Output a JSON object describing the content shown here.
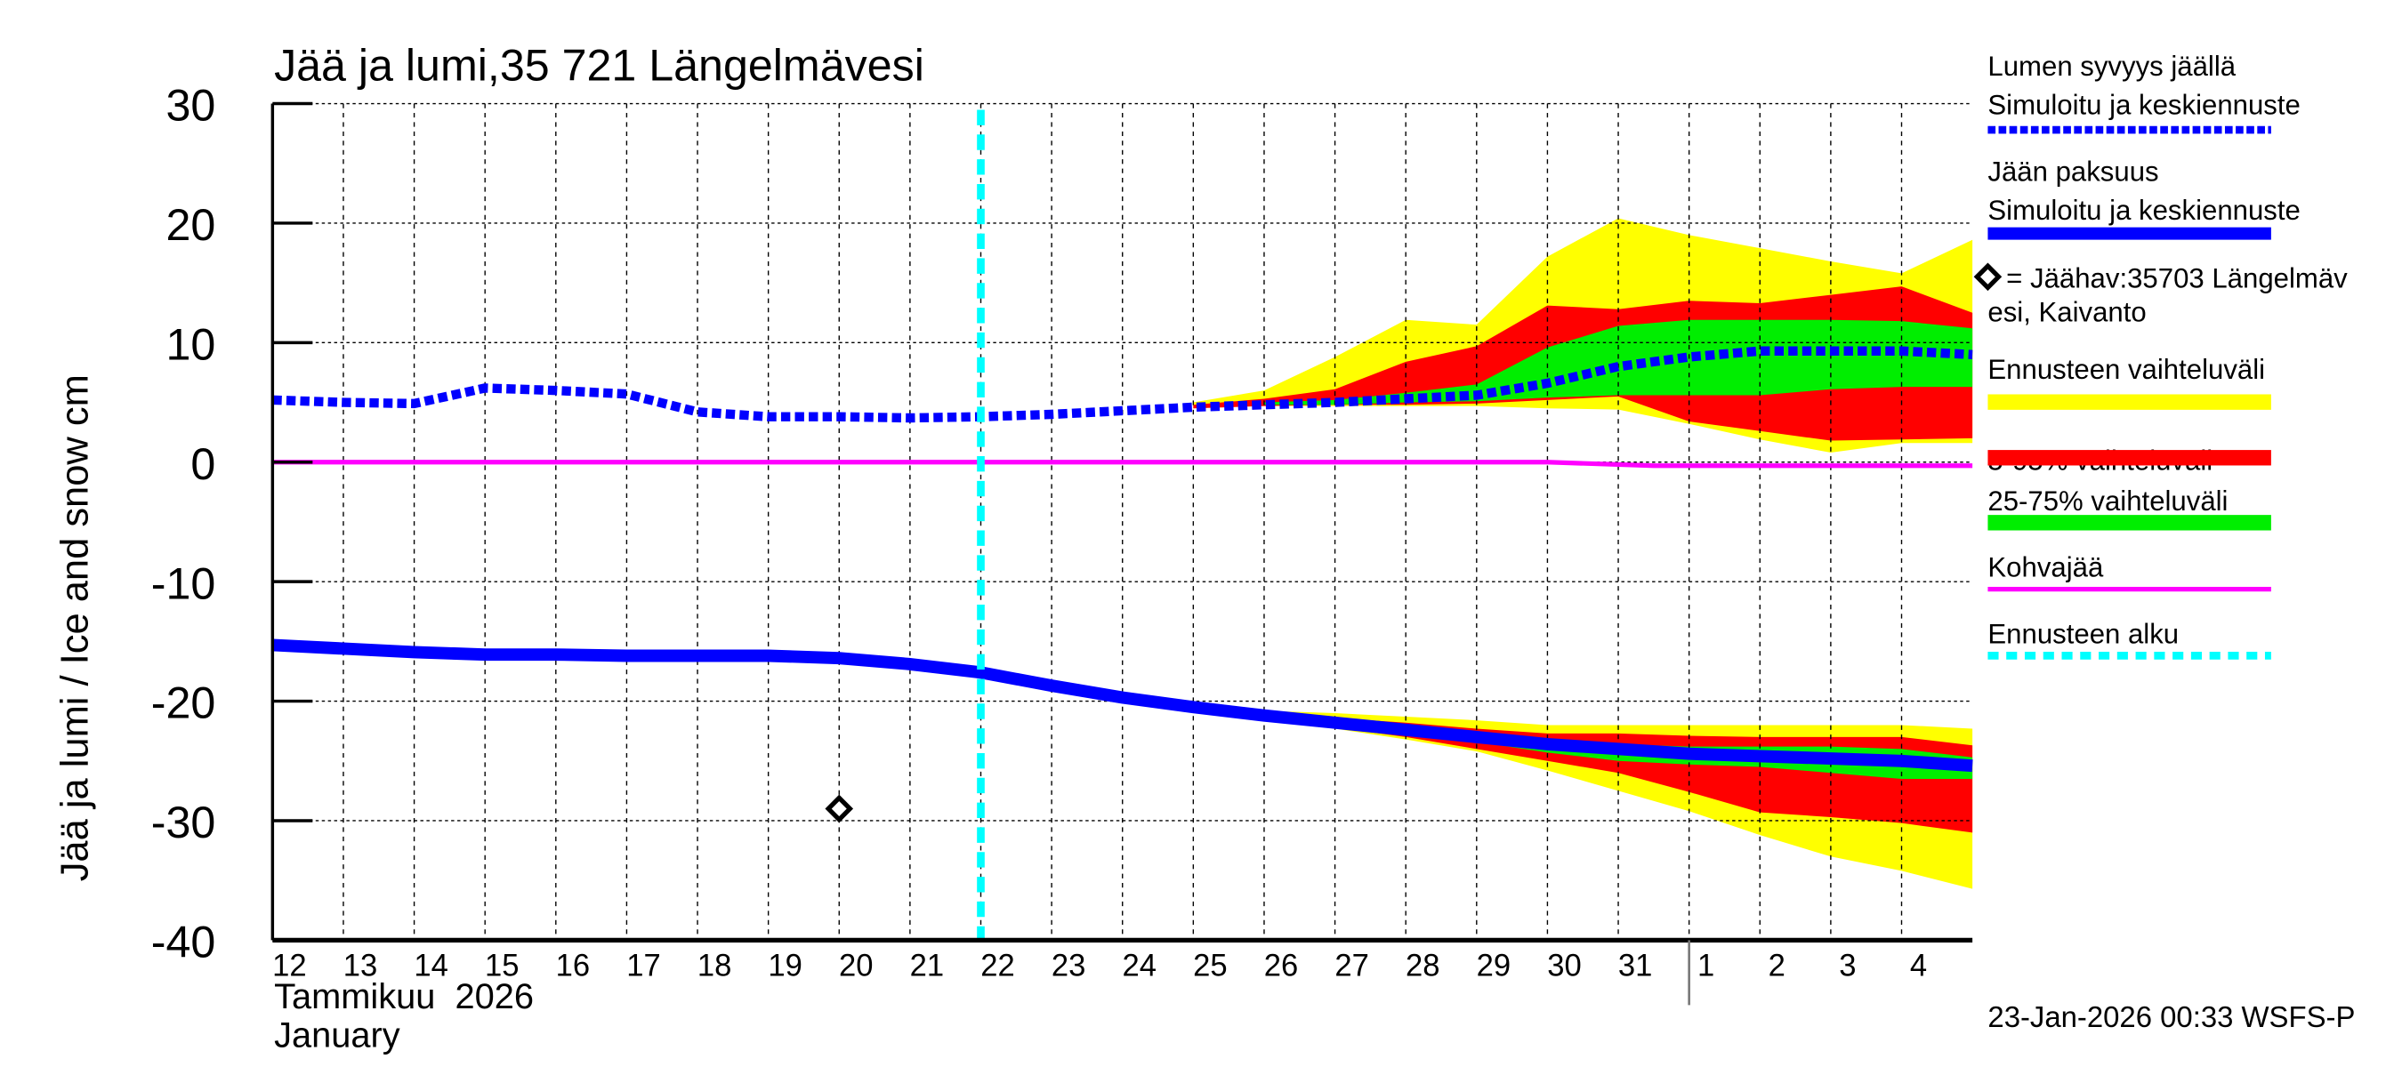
{
  "chart_data": {
    "type": "area",
    "title": "Jää ja lumi,35 721 Längelmävesi",
    "ylabel": "Jää ja lumi / Ice and snow    cm",
    "xlabel_lines": [
      "Tammikuu  2026",
      "January"
    ],
    "timestamp": "23-Jan-2026 00:33 WSFS-P",
    "ylim": [
      -40,
      30
    ],
    "yticks": [
      30,
      20,
      10,
      0,
      -10,
      -20,
      -30,
      -40
    ],
    "xlim_days": [
      12,
      36
    ],
    "x_tick_labels": [
      "12",
      "13",
      "14",
      "15",
      "16",
      "17",
      "18",
      "19",
      "20",
      "21",
      "22",
      "23",
      "24",
      "25",
      "26",
      "27",
      "28",
      "29",
      "30",
      "31",
      "1",
      "2",
      "3",
      "4"
    ],
    "grid": true,
    "legend_position": "right",
    "forecast_start_day": 22,
    "month_boundary_day": 32,
    "colors": {
      "snow": "#0000ff",
      "ice": "#0000ff",
      "range_full": "#ffff00",
      "range_5_95": "#ff0000",
      "range_25_75": "#00ee00",
      "slush": "#ff00ff",
      "forecast_start": "#00ffff",
      "observation": "#000000"
    },
    "legend": [
      {
        "lines": [
          "Lumen syvyys jäällä",
          "Simuloitu ja keskiennuste"
        ],
        "style": "dashed-blue"
      },
      {
        "lines": [
          "Jään paksuus",
          "Simuloitu ja keskiennuste"
        ],
        "style": "solid-blue"
      },
      {
        "lines": [
          "= Jäähav:35703 Längelmäv",
          "esi, Kaivanto"
        ],
        "style": "diamond"
      },
      {
        "lines": [
          "Ennusteen vaihteluväli"
        ],
        "style": "yellow"
      },
      {
        "lines": [
          "5-95% vaihteluväli"
        ],
        "style": "red"
      },
      {
        "lines": [
          "25-75% vaihteluväli"
        ],
        "style": "green"
      },
      {
        "lines": [
          "Kohvajää"
        ],
        "style": "magenta"
      },
      {
        "lines": [
          "Ennusteen alku"
        ],
        "style": "cyan-dashed"
      }
    ],
    "series": {
      "snow_depth": {
        "x": [
          12,
          13,
          14,
          15,
          16,
          17,
          18,
          19,
          20,
          21,
          22,
          23,
          24,
          25,
          26,
          27,
          28,
          29,
          30,
          31,
          32,
          33,
          34,
          35,
          36
        ],
        "y": [
          5.2,
          5.0,
          4.9,
          6.2,
          6.0,
          5.7,
          4.2,
          3.8,
          3.8,
          3.7,
          3.8,
          4.0,
          4.3,
          4.6,
          4.8,
          5.0,
          5.3,
          5.6,
          6.6,
          8.0,
          8.8,
          9.3,
          9.3,
          9.3,
          9.0
        ]
      },
      "snow_range_full": {
        "x": [
          25,
          26,
          27,
          28,
          29,
          30,
          31,
          32,
          33,
          34,
          35,
          36
        ],
        "upper": [
          5.0,
          6.0,
          8.8,
          11.9,
          11.5,
          17.2,
          20.4,
          19.0,
          17.9,
          16.8,
          15.8,
          18.6
        ],
        "lower": [
          4.5,
          4.7,
          4.7,
          4.7,
          4.7,
          4.5,
          4.4,
          3.2,
          1.9,
          0.8,
          1.6,
          1.6
        ]
      },
      "snow_range_5_95": {
        "x": [
          25,
          26,
          27,
          28,
          29,
          30,
          31,
          32,
          33,
          34,
          35,
          36
        ],
        "upper": [
          4.8,
          5.3,
          6.1,
          8.4,
          9.7,
          13.1,
          12.8,
          13.5,
          13.3,
          14.0,
          14.7,
          12.5
        ],
        "lower": [
          4.5,
          4.7,
          4.8,
          4.8,
          4.9,
          5.2,
          5.5,
          3.4,
          2.6,
          1.8,
          1.9,
          2.0
        ]
      },
      "snow_range_25_75": {
        "x": [
          26,
          27,
          28,
          29,
          30,
          31,
          32,
          33,
          34,
          35,
          36
        ],
        "upper": [
          5.0,
          5.2,
          5.8,
          6.5,
          9.6,
          11.4,
          11.9,
          11.9,
          11.9,
          11.8,
          11.2
        ],
        "lower": [
          4.8,
          4.8,
          5.0,
          5.1,
          5.4,
          5.6,
          5.6,
          5.6,
          6.1,
          6.3,
          6.3
        ]
      },
      "ice_thickness": {
        "x": [
          12,
          13,
          14,
          15,
          16,
          17,
          18,
          19,
          20,
          21,
          22,
          23,
          24,
          25,
          26,
          27,
          28,
          29,
          30,
          31,
          32,
          33,
          34,
          35,
          36
        ],
        "y": [
          -15.3,
          -15.6,
          -15.9,
          -16.1,
          -16.1,
          -16.2,
          -16.2,
          -16.2,
          -16.4,
          -16.9,
          -17.6,
          -18.7,
          -19.7,
          -20.5,
          -21.2,
          -21.8,
          -22.4,
          -23.0,
          -23.6,
          -24.0,
          -24.4,
          -24.6,
          -24.8,
          -25.0,
          -25.4
        ]
      },
      "ice_range_full": {
        "x": [
          24,
          25,
          26,
          27,
          28,
          29,
          30,
          31,
          32,
          33,
          34,
          35,
          36
        ],
        "upper": [
          -19.7,
          -20.4,
          -20.8,
          -21.0,
          -21.3,
          -21.6,
          -22.0,
          -22.0,
          -22.0,
          -22.0,
          -22.0,
          -22.0,
          -22.3
        ],
        "lower": [
          -20.0,
          -20.8,
          -21.6,
          -22.3,
          -23.2,
          -24.2,
          -25.8,
          -27.5,
          -29.2,
          -31.2,
          -33.0,
          -34.2,
          -35.7
        ]
      },
      "ice_range_5_95": {
        "x": [
          26,
          27,
          28,
          29,
          30,
          31,
          32,
          33,
          34,
          35,
          36
        ],
        "upper": [
          -21.0,
          -21.4,
          -21.8,
          -22.3,
          -22.7,
          -22.7,
          -22.9,
          -23.0,
          -23.0,
          -23.0,
          -23.7
        ],
        "lower": [
          -21.5,
          -22.2,
          -23.0,
          -24.0,
          -25.0,
          -26.0,
          -27.6,
          -29.3,
          -29.7,
          -30.2,
          -31.0
        ]
      },
      "ice_range_25_75": {
        "x": [
          28,
          29,
          30,
          31,
          32,
          33,
          34,
          35,
          36
        ],
        "upper": [
          -22.2,
          -22.8,
          -23.3,
          -23.6,
          -23.8,
          -23.8,
          -23.8,
          -24.0,
          -24.7
        ],
        "lower": [
          -22.6,
          -23.4,
          -24.3,
          -25.0,
          -25.3,
          -25.5,
          -26.0,
          -26.5,
          -26.5
        ]
      },
      "slush_ice": {
        "x": [
          12,
          30,
          31.5,
          36
        ],
        "y": [
          0,
          0,
          -0.3,
          -0.3
        ]
      },
      "observation": {
        "x": [
          20
        ],
        "y": [
          -29
        ]
      }
    }
  }
}
